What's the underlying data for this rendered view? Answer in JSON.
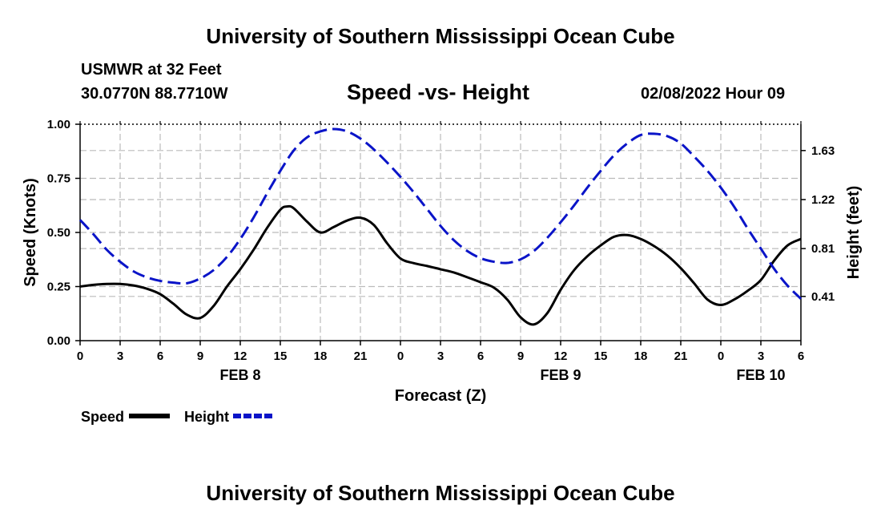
{
  "page": {
    "title_top": "University of Southern Mississippi Ocean Cube",
    "title_bottom": "University of Southern Mississippi Ocean Cube",
    "station_line": "USMWR at 32 Feet",
    "coord_line": "30.0770N  88.7710W",
    "chart_title": "Speed -vs- Height",
    "datetime": "02/08/2022 Hour 09"
  },
  "legend": {
    "speed_label": "Speed",
    "height_label": "Height"
  },
  "colors": {
    "speed": "#000000",
    "height": "#0a14c8",
    "grid": "#bbbbbb"
  },
  "chart_data": {
    "type": "line",
    "title": "Speed -vs- Height",
    "xlabel": "Forecast (Z)",
    "ylabel": "Speed (Knots)",
    "y2label": "Height (feet)",
    "x_range": [
      0,
      54
    ],
    "ylim": [
      0,
      1
    ],
    "y2lim": [
      0.04,
      1.85
    ],
    "x_ticks": [
      0,
      3,
      6,
      9,
      12,
      15,
      18,
      21,
      24,
      27,
      30,
      33,
      36,
      39,
      42,
      45,
      48,
      51,
      54
    ],
    "x_tick_labels": [
      "0",
      "3",
      "6",
      "9",
      "12",
      "15",
      "18",
      "21",
      "0",
      "3",
      "6",
      "9",
      "12",
      "15",
      "18",
      "21",
      "0",
      "3",
      "6"
    ],
    "date_labels": [
      {
        "label": "FEB 8",
        "x": 12
      },
      {
        "label": "FEB 9",
        "x": 36
      },
      {
        "label": "FEB 10",
        "x": 51
      }
    ],
    "y_ticks": [
      0,
      0.25,
      0.5,
      0.75,
      1.0
    ],
    "y_tick_labels": [
      "0.00",
      "0.25",
      "0.50",
      "0.75",
      "1.00"
    ],
    "y2_ticks": [
      0.41,
      0.81,
      1.22,
      1.63
    ],
    "y2_tick_labels": [
      "0.41",
      "0.81",
      "1.22",
      "1.63"
    ],
    "grid": true,
    "series": [
      {
        "name": "Speed",
        "axis": "left",
        "style": "solid",
        "x": [
          0,
          1,
          2,
          3,
          4,
          5,
          6,
          7,
          8,
          9,
          10,
          11,
          12,
          13,
          14,
          15,
          15.5,
          16,
          17,
          18,
          19,
          20,
          21,
          22,
          23,
          24,
          25,
          26,
          27,
          28,
          29,
          30,
          31,
          32,
          33,
          34,
          35,
          36,
          37,
          38,
          39,
          40,
          41,
          42,
          43,
          44,
          45,
          46,
          47,
          48,
          49,
          50,
          51,
          52,
          53,
          54
        ],
        "values": [
          0.25,
          0.258,
          0.262,
          0.262,
          0.255,
          0.24,
          0.215,
          0.17,
          0.12,
          0.105,
          0.16,
          0.25,
          0.33,
          0.42,
          0.52,
          0.605,
          0.62,
          0.612,
          0.55,
          0.5,
          0.525,
          0.555,
          0.568,
          0.535,
          0.45,
          0.38,
          0.358,
          0.345,
          0.33,
          0.315,
          0.293,
          0.27,
          0.245,
          0.19,
          0.108,
          0.075,
          0.127,
          0.235,
          0.325,
          0.39,
          0.44,
          0.48,
          0.488,
          0.47,
          0.437,
          0.393,
          0.335,
          0.265,
          0.19,
          0.165,
          0.19,
          0.23,
          0.28,
          0.37,
          0.44,
          0.47
        ]
      },
      {
        "name": "Height",
        "axis": "right",
        "style": "dashed",
        "x": [
          0,
          1,
          2,
          3,
          4,
          5,
          6,
          7,
          8,
          9,
          10,
          11,
          12,
          13,
          14,
          15,
          16,
          17,
          18,
          19,
          20,
          21,
          22,
          23,
          24,
          25,
          26,
          27,
          28,
          29,
          30,
          31,
          32,
          33,
          34,
          35,
          36,
          37,
          38,
          39,
          40,
          41,
          42,
          43,
          44,
          45,
          46,
          47,
          48,
          49,
          50,
          51,
          52,
          53,
          54
        ],
        "values": [
          1.05,
          0.93,
          0.8,
          0.7,
          0.62,
          0.57,
          0.54,
          0.525,
          0.52,
          0.56,
          0.63,
          0.74,
          0.89,
          1.07,
          1.27,
          1.46,
          1.63,
          1.74,
          1.79,
          1.81,
          1.79,
          1.73,
          1.64,
          1.53,
          1.41,
          1.28,
          1.14,
          1.0,
          0.88,
          0.79,
          0.73,
          0.7,
          0.69,
          0.72,
          0.79,
          0.9,
          1.03,
          1.17,
          1.32,
          1.46,
          1.59,
          1.69,
          1.76,
          1.77,
          1.75,
          1.69,
          1.58,
          1.46,
          1.32,
          1.16,
          0.98,
          0.81,
          0.64,
          0.5,
          0.39
        ]
      }
    ]
  }
}
